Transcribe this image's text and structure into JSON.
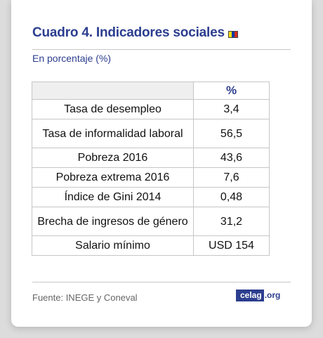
{
  "header": {
    "title": "Cuadro 4. Indicadores sociales",
    "flag_colors": [
      "#fce300",
      "#003da5",
      "#d52b1e"
    ],
    "subtitle": "En porcentaje (%)"
  },
  "table": {
    "columns": [
      "",
      "%"
    ],
    "rows": [
      {
        "label": "Tasa de desempleo",
        "value": "3,4"
      },
      {
        "label": "Tasa de informalidad laboral",
        "value": "56,5"
      },
      {
        "label": "Pobreza 2016",
        "value": "43,6"
      },
      {
        "label": "Pobreza extrema 2016",
        "value": "7,6"
      },
      {
        "label": "Índice de Gini 2014",
        "value": "0,48"
      },
      {
        "label": "Brecha de ingresos de género",
        "value": "31,2"
      },
      {
        "label": "Salario mínimo",
        "value": "USD 154"
      }
    ]
  },
  "footer": {
    "source": "Fuente: INEGE y Coneval",
    "logo_main": "celag",
    "logo_tld": ".org"
  }
}
